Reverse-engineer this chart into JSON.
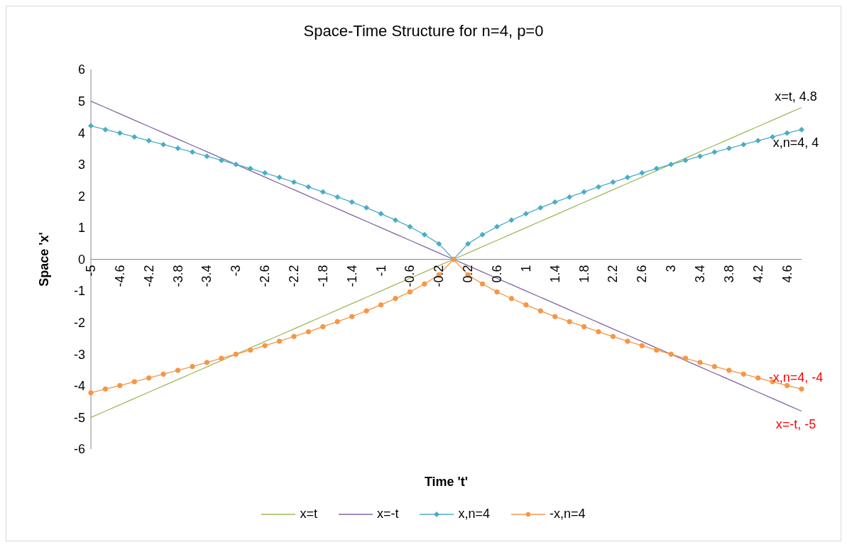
{
  "chart_data": {
    "type": "line",
    "title": "Space-Time Structure for n=4, p=0",
    "xlabel": "Time 't'",
    "ylabel": "Space 'x'",
    "categories": [
      "-5",
      null,
      "-4.6",
      null,
      "-4.2",
      null,
      "-3.8",
      null,
      "-3.4",
      null,
      "-3",
      null,
      "-2.6",
      null,
      "-2.2",
      null,
      "-1.8",
      null,
      "-1.4",
      null,
      "-1",
      null,
      "-0.6",
      null,
      "-0.2",
      null,
      "0.2",
      null,
      "0.6",
      null,
      "1",
      null,
      "1.4",
      null,
      "1.8",
      null,
      "2.2",
      null,
      "2.6",
      null,
      "3",
      null,
      "3.4",
      null,
      "3.8",
      null,
      "4.2",
      null,
      "4.6",
      null
    ],
    "ylim": [
      -6,
      6
    ],
    "yticks": [
      -6,
      -5,
      -4,
      -3,
      -2,
      -1,
      0,
      1,
      2,
      3,
      4,
      5,
      6
    ],
    "grid": false,
    "legend": "bottom",
    "series": [
      {
        "name": "x=t",
        "color": "#9bbb59",
        "marker": "none",
        "values": [
          -5,
          -4.8,
          -4.6,
          -4.4,
          -4.2,
          -4,
          -3.8,
          -3.6,
          -3.4,
          -3.2,
          -3,
          -2.8,
          -2.6,
          -2.4,
          -2.2,
          -2,
          -1.8,
          -1.6,
          -1.4,
          -1.2,
          -1,
          -0.8,
          -0.6,
          -0.4,
          -0.2,
          0,
          0.2,
          0.4,
          0.6,
          0.8,
          1,
          1.2,
          1.4,
          1.6,
          1.8,
          2,
          2.2,
          2.4,
          2.6,
          2.8,
          3,
          3.2,
          3.4,
          3.6,
          3.8,
          4,
          4.2,
          4.4,
          4.6,
          4.8
        ],
        "value_labels": [
          null,
          null,
          null,
          null,
          null,
          null,
          null,
          null,
          null,
          null,
          null,
          null,
          null,
          null,
          null,
          null,
          null,
          null,
          null,
          null,
          null,
          null,
          null,
          null,
          null,
          null,
          null,
          null,
          null,
          null,
          null,
          null,
          null,
          null,
          null,
          null,
          null,
          null,
          null,
          null,
          null,
          null,
          null,
          null,
          null,
          null,
          null,
          null,
          null,
          "x=t, 4.8"
        ]
      },
      {
        "name": "x=-t",
        "color": "#8064a2",
        "marker": "none",
        "values": [
          5,
          4.8,
          4.6,
          4.4,
          4.2,
          4,
          3.8,
          3.6,
          3.4,
          3.2,
          3,
          2.8,
          2.6,
          2.4,
          2.2,
          2,
          1.8,
          1.6,
          1.4,
          1.2,
          1,
          0.8,
          0.6,
          0.4,
          0.2,
          0,
          -0.2,
          -0.4,
          -0.6,
          -0.8,
          -1,
          -1.2,
          -1.4,
          -1.6,
          -1.8,
          -2,
          -2.2,
          -2.4,
          -2.6,
          -2.8,
          -3,
          -3.2,
          -3.4,
          -3.6,
          -3.8,
          -4,
          -4.2,
          -4.4,
          -4.6,
          -4.8
        ],
        "value_labels": [
          null,
          null,
          null,
          null,
          null,
          null,
          null,
          null,
          null,
          null,
          null,
          null,
          null,
          null,
          null,
          null,
          null,
          null,
          null,
          null,
          null,
          null,
          null,
          null,
          null,
          null,
          null,
          null,
          null,
          null,
          null,
          null,
          null,
          null,
          null,
          null,
          null,
          null,
          null,
          null,
          null,
          null,
          null,
          null,
          null,
          null,
          null,
          null,
          null,
          "x=-t, -5"
        ]
      },
      {
        "name": "x,n=4",
        "color": "#4bacc6",
        "marker": "diamond",
        "values": [
          4.22,
          4.1,
          3.99,
          3.87,
          3.75,
          3.63,
          3.51,
          3.39,
          3.26,
          3.13,
          3,
          2.87,
          2.73,
          2.59,
          2.44,
          2.29,
          2.13,
          1.97,
          1.81,
          1.63,
          1.44,
          1.24,
          1.03,
          0.78,
          0.49,
          0,
          0.49,
          0.78,
          1.03,
          1.24,
          1.44,
          1.63,
          1.81,
          1.97,
          2.13,
          2.29,
          2.44,
          2.59,
          2.73,
          2.87,
          3,
          3.13,
          3.26,
          3.39,
          3.51,
          3.63,
          3.75,
          3.87,
          3.99,
          4.1
        ],
        "value_labels": [
          null,
          null,
          null,
          null,
          null,
          null,
          null,
          null,
          null,
          null,
          null,
          null,
          null,
          null,
          null,
          null,
          null,
          null,
          null,
          null,
          null,
          null,
          null,
          null,
          null,
          null,
          null,
          null,
          null,
          null,
          null,
          null,
          null,
          null,
          null,
          null,
          null,
          null,
          null,
          null,
          null,
          null,
          null,
          null,
          null,
          null,
          null,
          null,
          null,
          "x,n=4, 4"
        ]
      },
      {
        "name": "-x,n=4",
        "color": "#f79646",
        "marker": "circle",
        "values": [
          -4.22,
          -4.1,
          -3.99,
          -3.87,
          -3.75,
          -3.63,
          -3.51,
          -3.39,
          -3.26,
          -3.13,
          -3,
          -2.87,
          -2.73,
          -2.59,
          -2.44,
          -2.29,
          -2.13,
          -1.97,
          -1.81,
          -1.63,
          -1.44,
          -1.24,
          -1.03,
          -0.78,
          -0.49,
          0,
          -0.49,
          -0.78,
          -1.03,
          -1.24,
          -1.44,
          -1.63,
          -1.81,
          -1.97,
          -2.13,
          -2.29,
          -2.44,
          -2.59,
          -2.73,
          -2.87,
          -3,
          -3.13,
          -3.26,
          -3.39,
          -3.51,
          -3.63,
          -3.75,
          -3.87,
          -3.99,
          -4.1
        ],
        "value_labels": [
          null,
          null,
          null,
          null,
          null,
          null,
          null,
          null,
          null,
          null,
          null,
          null,
          null,
          null,
          null,
          null,
          null,
          null,
          null,
          null,
          null,
          null,
          null,
          null,
          null,
          null,
          null,
          null,
          null,
          null,
          null,
          null,
          null,
          null,
          null,
          null,
          null,
          null,
          null,
          null,
          null,
          null,
          null,
          null,
          null,
          null,
          null,
          null,
          null,
          "-x,n=4, -4"
        ]
      }
    ]
  }
}
